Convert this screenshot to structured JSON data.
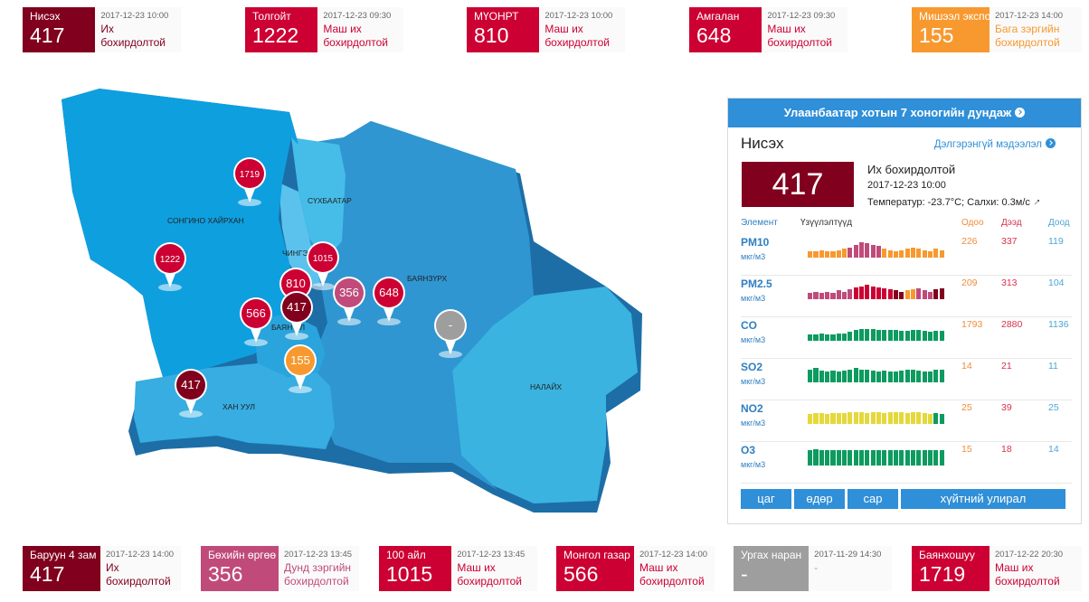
{
  "top_cards": [
    {
      "name": "Нисэх",
      "value": "417",
      "time": "2017-12-23 10:00",
      "status_line1": "Их",
      "status_line2": "бохирдолтой",
      "color": "#80001d",
      "text_color": "#80001d"
    },
    {
      "name": "Толгойт",
      "value": "1222",
      "time": "2017-12-23 09:30",
      "status_line1": "Маш их",
      "status_line2": "бохирдолтой",
      "color": "#cc0033",
      "text_color": "#cc0033"
    },
    {
      "name": "МҮОНРТ",
      "value": "810",
      "time": "2017-12-23 10:00",
      "status_line1": "Маш их",
      "status_line2": "бохирдолтой",
      "color": "#cc0033",
      "text_color": "#cc0033"
    },
    {
      "name": "Амгалан",
      "value": "648",
      "time": "2017-12-23 09:30",
      "status_line1": "Маш их",
      "status_line2": "бохирдолтой",
      "color": "#cc0033",
      "text_color": "#cc0033"
    },
    {
      "name": "Мишээл экспо",
      "value": "155",
      "time": "2017-12-23 14:00",
      "status_line1": "Бага зэргийн",
      "status_line2": "бохирдолтой",
      "color": "#f7992f",
      "text_color": "#f7992f"
    }
  ],
  "bottom_cards": [
    {
      "name": "Баруун 4 зам",
      "value": "417",
      "time": "2017-12-23 14:00",
      "status_line1": "Их",
      "status_line2": "бохирдолтой",
      "color": "#80001d",
      "text_color": "#80001d"
    },
    {
      "name": "Бөхийн өргөө",
      "value": "356",
      "time": "2017-12-23 13:45",
      "status_line1": "Дунд зэргийн",
      "status_line2": "бохирдолтой",
      "color": "#c04b7a",
      "text_color": "#c04b7a"
    },
    {
      "name": "100 айл",
      "value": "1015",
      "time": "2017-12-23 13:45",
      "status_line1": "Маш их",
      "status_line2": "бохирдолтой",
      "color": "#cc0033",
      "text_color": "#cc0033"
    },
    {
      "name": "Монгол газар",
      "value": "566",
      "time": "2017-12-23 14:00",
      "status_line1": "Маш их",
      "status_line2": "бохирдолтой",
      "color": "#cc0033",
      "text_color": "#cc0033"
    },
    {
      "name": "Ургах наран",
      "value": "-",
      "time": "2017-11-29 14:30",
      "status_line1": "-",
      "status_line2": "",
      "color": "#9e9e9e",
      "text_color": "#9e9e9e"
    },
    {
      "name": "Баянхошуу",
      "value": "1719",
      "time": "2017-12-22 20:30",
      "status_line1": "Маш их",
      "status_line2": "бохирдолтой",
      "color": "#cc0033",
      "text_color": "#cc0033"
    }
  ],
  "map": {
    "districts": [
      "СОНГИНО ХАЙРХАН",
      "СҮХБААТАР",
      "ЧИНГЭ",
      "БАЯНЗҮРХ",
      "БАЯН   ЭЛ",
      "ХАН УУЛ",
      "НАЛАЙХ"
    ],
    "pins": [
      {
        "value": "1719",
        "color": "#cc0033"
      },
      {
        "value": "1222",
        "color": "#cc0033"
      },
      {
        "value": "1015",
        "color": "#cc0033"
      },
      {
        "value": "810",
        "color": "#cc0033"
      },
      {
        "value": "356",
        "color": "#c04b7a"
      },
      {
        "value": "648",
        "color": "#cc0033"
      },
      {
        "value": "566",
        "color": "#cc0033"
      },
      {
        "value": "417",
        "color": "#80001d"
      },
      {
        "value": "155",
        "color": "#f7992f"
      },
      {
        "value": "417",
        "color": "#80001d"
      },
      {
        "value": "-",
        "color": "#9e9e9e"
      }
    ]
  },
  "panel": {
    "header": "Улаанбаатар хотын 7 хоногийн дундаж",
    "station": "Нисэх",
    "detail_link": "Дэлгэрэнгүй мэдээлэл",
    "aqi": "417",
    "aqi_color": "#80001d",
    "status": "Их бохирдолтой",
    "time": "2017-12-23 10:00",
    "weather": "Температур: -23.7°C; Салхи: 0.3м/с",
    "columns": {
      "element": "Элемент",
      "trend": "Үзүүлэлтүүд",
      "now": "Одоо",
      "max": "Дээд",
      "min": "Доод"
    },
    "elements": [
      {
        "name": "PM10",
        "unit": "мкг/м3",
        "now": "226",
        "max": "337",
        "min": "119",
        "bars": [
          0.3,
          0.3,
          0.35,
          0.3,
          0.3,
          0.35,
          0.4,
          0.45,
          0.6,
          0.7,
          0.65,
          0.6,
          0.55,
          0.4,
          0.35,
          0.3,
          0.35,
          0.4,
          0.45,
          0.4,
          0.35,
          0.3,
          0.4,
          0.35
        ],
        "bar_colors": [
          "#f7992f",
          "#f7992f",
          "#f7992f",
          "#f7992f",
          "#f7992f",
          "#f7992f",
          "#f7992f",
          "#c04b7a",
          "#c04b7a",
          "#c04b7a",
          "#c04b7a",
          "#c04b7a",
          "#c04b7a",
          "#f7992f",
          "#f7992f",
          "#f7992f",
          "#f7992f",
          "#f7992f",
          "#f7992f",
          "#f7992f",
          "#f7992f",
          "#f7992f",
          "#f7992f",
          "#f7992f"
        ]
      },
      {
        "name": "PM2.5",
        "unit": "мкг/м3",
        "now": "209",
        "max": "313",
        "min": "104",
        "bars": [
          0.3,
          0.35,
          0.3,
          0.35,
          0.3,
          0.4,
          0.35,
          0.45,
          0.55,
          0.6,
          0.65,
          0.6,
          0.55,
          0.5,
          0.45,
          0.4,
          0.35,
          0.4,
          0.45,
          0.5,
          0.4,
          0.35,
          0.45,
          0.5
        ],
        "bar_colors": [
          "#c04b7a",
          "#c04b7a",
          "#c04b7a",
          "#c04b7a",
          "#c04b7a",
          "#c04b7a",
          "#c04b7a",
          "#c04b7a",
          "#cc0033",
          "#cc0033",
          "#cc0033",
          "#cc0033",
          "#cc0033",
          "#cc0033",
          "#cc0033",
          "#80001d",
          "#80001d",
          "#f7992f",
          "#f7992f",
          "#c04b7a",
          "#c04b7a",
          "#c04b7a",
          "#80001d",
          "#80001d"
        ]
      },
      {
        "name": "CO",
        "unit": "мкг/м3",
        "now": "1793",
        "max": "2880",
        "min": "1136",
        "bars": [
          0.3,
          0.3,
          0.35,
          0.3,
          0.3,
          0.35,
          0.35,
          0.4,
          0.5,
          0.55,
          0.55,
          0.55,
          0.5,
          0.5,
          0.5,
          0.5,
          0.45,
          0.45,
          0.5,
          0.5,
          0.45,
          0.4,
          0.45,
          0.45
        ],
        "bar_colors": [
          "#0d9b5f",
          "#0d9b5f",
          "#0d9b5f",
          "#0d9b5f",
          "#0d9b5f",
          "#0d9b5f",
          "#0d9b5f",
          "#0d9b5f",
          "#0d9b5f",
          "#0d9b5f",
          "#0d9b5f",
          "#0d9b5f",
          "#0d9b5f",
          "#0d9b5f",
          "#0d9b5f",
          "#0d9b5f",
          "#0d9b5f",
          "#0d9b5f",
          "#0d9b5f",
          "#0d9b5f",
          "#0d9b5f",
          "#0d9b5f",
          "#0d9b5f",
          "#0d9b5f"
        ]
      },
      {
        "name": "SO2",
        "unit": "мкг/м3",
        "now": "14",
        "max": "21",
        "min": "11",
        "bars": [
          0.6,
          0.65,
          0.55,
          0.5,
          0.55,
          0.5,
          0.55,
          0.6,
          0.65,
          0.6,
          0.6,
          0.55,
          0.5,
          0.55,
          0.5,
          0.5,
          0.55,
          0.6,
          0.6,
          0.55,
          0.5,
          0.5,
          0.6,
          0.6
        ],
        "bar_colors": [
          "#0d9b5f",
          "#0d9b5f",
          "#0d9b5f",
          "#0d9b5f",
          "#0d9b5f",
          "#0d9b5f",
          "#0d9b5f",
          "#0d9b5f",
          "#0d9b5f",
          "#0d9b5f",
          "#0d9b5f",
          "#0d9b5f",
          "#0d9b5f",
          "#0d9b5f",
          "#0d9b5f",
          "#0d9b5f",
          "#0d9b5f",
          "#0d9b5f",
          "#0d9b5f",
          "#0d9b5f",
          "#0d9b5f",
          "#0d9b5f",
          "#0d9b5f",
          "#0d9b5f"
        ]
      },
      {
        "name": "NO2",
        "unit": "мкг/м3",
        "now": "25",
        "max": "39",
        "min": "25",
        "bars": [
          0.45,
          0.5,
          0.5,
          0.45,
          0.5,
          0.5,
          0.5,
          0.55,
          0.55,
          0.55,
          0.5,
          0.55,
          0.55,
          0.5,
          0.55,
          0.55,
          0.55,
          0.5,
          0.55,
          0.55,
          0.5,
          0.45,
          0.5,
          0.45
        ],
        "bar_colors": [
          "#e5d83b",
          "#e5d83b",
          "#e5d83b",
          "#e5d83b",
          "#e5d83b",
          "#e5d83b",
          "#e5d83b",
          "#e5d83b",
          "#e5d83b",
          "#e5d83b",
          "#e5d83b",
          "#e5d83b",
          "#e5d83b",
          "#e5d83b",
          "#e5d83b",
          "#e5d83b",
          "#e5d83b",
          "#e5d83b",
          "#e5d83b",
          "#e5d83b",
          "#e5d83b",
          "#e5d83b",
          "#0d9b5f",
          "#0d9b5f"
        ]
      },
      {
        "name": "O3",
        "unit": "мкг/м3",
        "now": "15",
        "max": "18",
        "min": "14",
        "bars": [
          0.7,
          0.75,
          0.7,
          0.7,
          0.7,
          0.7,
          0.7,
          0.7,
          0.7,
          0.7,
          0.7,
          0.7,
          0.7,
          0.7,
          0.7,
          0.7,
          0.7,
          0.7,
          0.7,
          0.7,
          0.7,
          0.7,
          0.7,
          0.7
        ],
        "bar_colors": [
          "#0d9b5f",
          "#0d9b5f",
          "#0d9b5f",
          "#0d9b5f",
          "#0d9b5f",
          "#0d9b5f",
          "#0d9b5f",
          "#0d9b5f",
          "#0d9b5f",
          "#0d9b5f",
          "#0d9b5f",
          "#0d9b5f",
          "#0d9b5f",
          "#0d9b5f",
          "#0d9b5f",
          "#0d9b5f",
          "#0d9b5f",
          "#0d9b5f",
          "#0d9b5f",
          "#0d9b5f",
          "#0d9b5f",
          "#0d9b5f",
          "#0d9b5f",
          "#0d9b5f"
        ]
      }
    ],
    "tabs": [
      "цаг",
      "өдөр",
      "сар",
      "хүйтний улирал"
    ]
  }
}
